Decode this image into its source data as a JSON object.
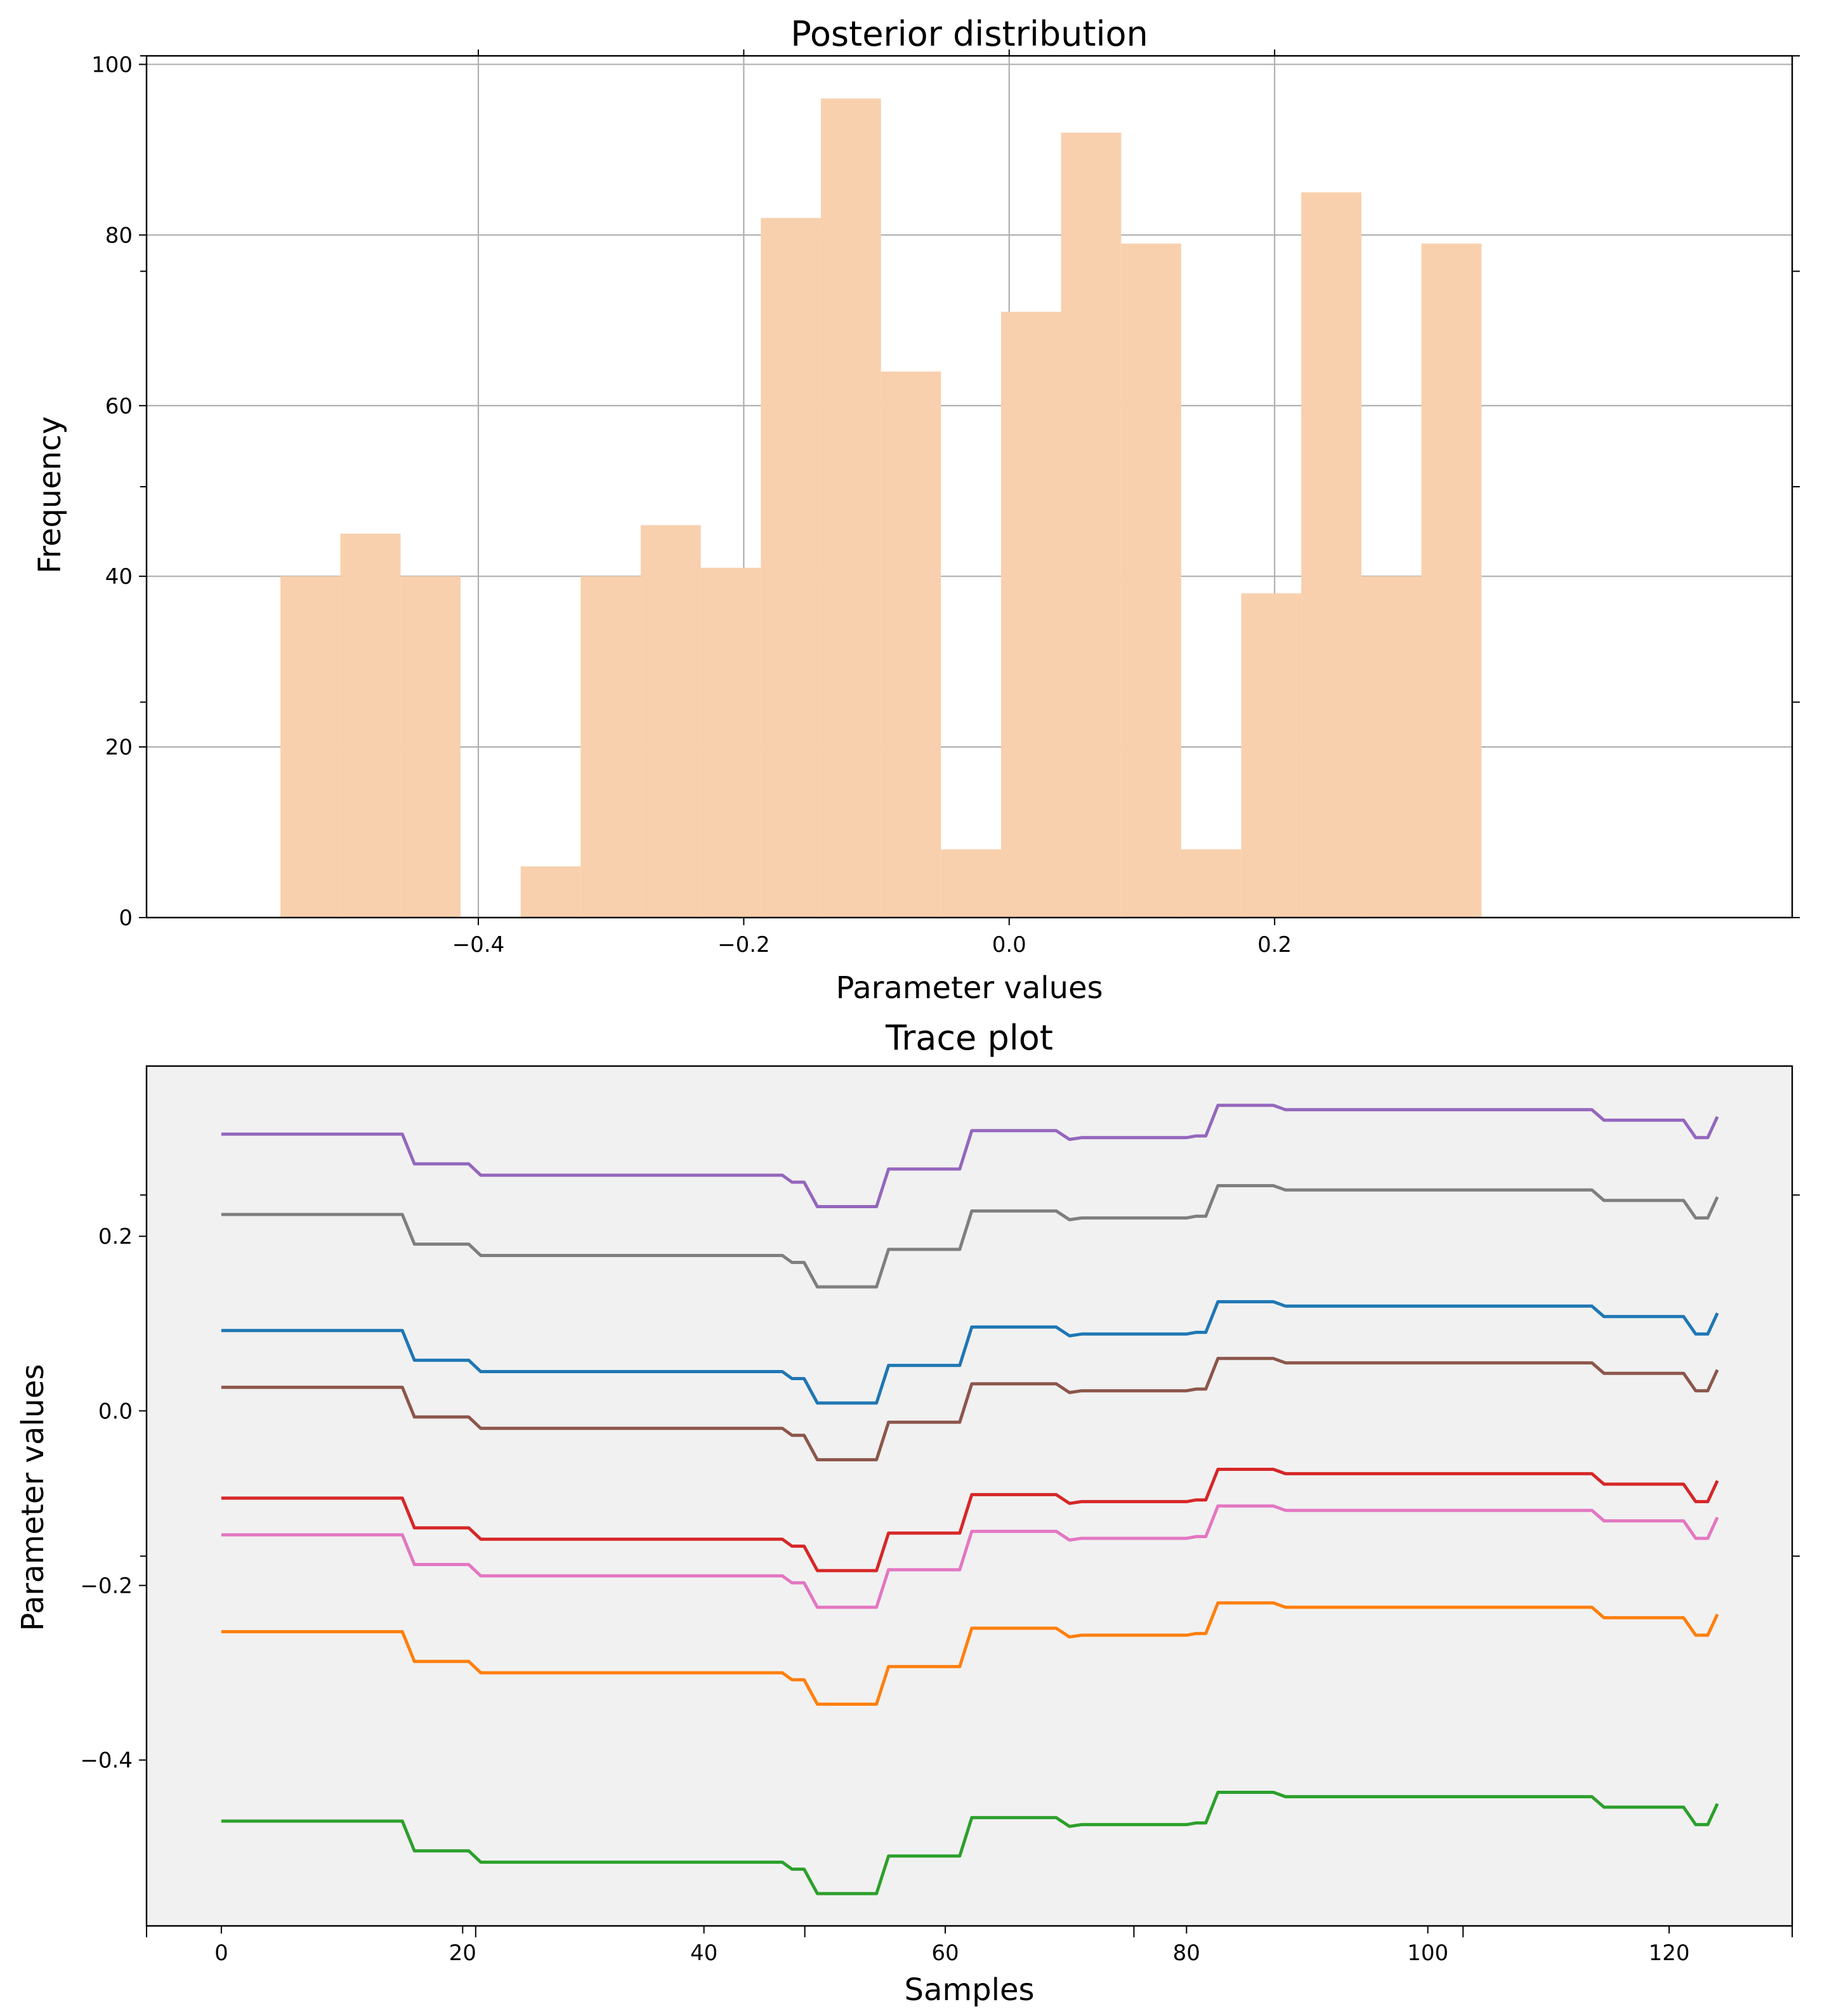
{
  "colors": {
    "hist_fill": "#f8d0ad",
    "grid": "#b0b0b0",
    "trace_bg": "#f1f1f1",
    "series": [
      "#9467bd",
      "#7f7f7f",
      "#1f77b4",
      "#8c564b",
      "#d62728",
      "#e377c2",
      "#ff7f0e",
      "#2ca02c"
    ]
  },
  "chart_data": [
    {
      "type": "bar",
      "title": "Posterior distribution",
      "xlabel": "Parameter values",
      "ylabel": "Frequency",
      "xlim": [
        -0.65,
        0.59
      ],
      "ylim": [
        0,
        101
      ],
      "grid": true,
      "bin_edges": [
        -0.5491,
        -0.5039,
        -0.4586,
        -0.4134,
        -0.3681,
        -0.3229,
        -0.2776,
        -0.2324,
        -0.1871,
        -0.1419,
        -0.0966,
        -0.0514,
        -0.0061,
        0.0391,
        0.0844,
        0.1296,
        0.1749,
        0.2201,
        0.2654,
        0.3106,
        0.3559
      ],
      "values": [
        40,
        45,
        40,
        0,
        6,
        40,
        46,
        41,
        82,
        96,
        64,
        8,
        71,
        92,
        79,
        8,
        38,
        85,
        40,
        79
      ],
      "xticks": [
        -0.4,
        -0.2,
        0.0,
        0.2
      ],
      "xtick_labels": [
        "−0.4",
        "−0.2",
        "0.0",
        "0.2"
      ],
      "yticks": [
        0,
        20,
        40,
        60,
        80,
        100
      ],
      "ytick_labels": [
        "0",
        "20",
        "40",
        "60",
        "80",
        "100"
      ]
    },
    {
      "type": "line",
      "title": "Trace plot",
      "xlabel": "Samples",
      "ylabel": "Parameter values",
      "xlim": [
        -6.2,
        130.2
      ],
      "ylim": [
        -0.59,
        0.395
      ],
      "grid": false,
      "xticks": [
        0,
        20,
        40,
        60,
        80,
        100,
        120
      ],
      "xtick_labels": [
        "0",
        "20",
        "40",
        "60",
        "80",
        "100",
        "120"
      ],
      "yticks": [
        -0.4,
        -0.2,
        0.0,
        0.2
      ],
      "ytick_labels": [
        "−0.4",
        "−0.2",
        "0.0",
        "0.2"
      ],
      "shared_offset_x": [
        0,
        15,
        16,
        20.5,
        21.5,
        46.5,
        47.3,
        48.3,
        49.4,
        54.3,
        55.3,
        61.2,
        62.2,
        69.2,
        70.3,
        71.3,
        80,
        80.8,
        81.6,
        82.6,
        87.2,
        88.2,
        113.6,
        114.6,
        121.2,
        122.2,
        123.2,
        124
      ],
      "shared_offset_y": [
        0,
        0,
        -0.034,
        -0.034,
        -0.047,
        -0.047,
        -0.055,
        -0.055,
        -0.083,
        -0.083,
        -0.04,
        -0.04,
        0.004,
        0.004,
        -0.006,
        -0.004,
        -0.004,
        -0.002,
        -0.002,
        0.033,
        0.033,
        0.028,
        0.028,
        0.016,
        0.016,
        -0.004,
        -0.004,
        0.02
      ],
      "series_base": [
        0.317,
        0.225,
        0.092,
        0.027,
        -0.1,
        -0.142,
        -0.253,
        -0.47
      ]
    }
  ]
}
